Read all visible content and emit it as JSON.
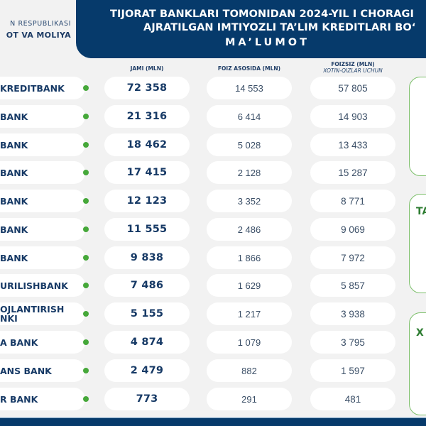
{
  "header": {
    "ministry_line1": "N RESPUBLIKASI",
    "ministry_line2": "OT VA MOLIYA",
    "title_line1": "TIJORAT BANKLARI TOMONIDAN 2024-YIL I CHORAGI",
    "title_line2": "AJRATILGAN IMTIYOZLI TA’LIM KREDITLARI BO‘",
    "title_line3": "MA’LUMOT"
  },
  "columns": {
    "jami": "JAMI (MLN)",
    "foiz": "FOIZ ASOSIDA (MLN)",
    "foizsiz": "FOIZSIZ (MLN)",
    "foizsiz_sub": "XOTIN-QIZLAR UCHUN"
  },
  "rows": [
    {
      "bank": "KREDITBANK",
      "jami": "72 358",
      "foiz": "14 553",
      "foizsiz": "57 805"
    },
    {
      "bank": "BANK",
      "jami": "21 316",
      "foiz": "6 414",
      "foizsiz": "14 903"
    },
    {
      "bank": "BANK",
      "jami": "18 462",
      "foiz": "5 028",
      "foizsiz": "13 433"
    },
    {
      "bank": "BANK",
      "jami": "17 415",
      "foiz": "2 128",
      "foizsiz": "15 287"
    },
    {
      "bank": "BANK",
      "jami": "12 123",
      "foiz": "3 352",
      "foizsiz": "8 771"
    },
    {
      "bank": "BANK",
      "jami": "11 555",
      "foiz": "2 486",
      "foizsiz": "9 069"
    },
    {
      "bank": "BANK",
      "jami": "9 838",
      "foiz": "1 866",
      "foizsiz": "7 972"
    },
    {
      "bank": "URILISHBANK",
      "jami": "7 486",
      "foiz": "1 629",
      "foizsiz": "5 857"
    },
    {
      "bank": "OJLANTIRISH\nNKI",
      "jami": "5 155",
      "foiz": "1 217",
      "foizsiz": "3 938"
    },
    {
      "bank": "A BANK",
      "jami": "4 874",
      "foiz": "1 079",
      "foizsiz": "3 795"
    },
    {
      "bank": "ANS BANK",
      "jami": "2 479",
      "foiz": "882",
      "foizsiz": "1 597"
    },
    {
      "bank": "R BANK",
      "jami": "773",
      "foiz": "291",
      "foizsiz": "481"
    }
  ],
  "side_boxes": [
    {
      "label": ""
    },
    {
      "label": "TA"
    },
    {
      "label": "X"
    }
  ],
  "colors": {
    "navy": "#063a6b",
    "text_navy": "#173a66",
    "green_dot": "#46a83a",
    "green_border": "#7cbf6a",
    "background": "#f2f2f2"
  }
}
